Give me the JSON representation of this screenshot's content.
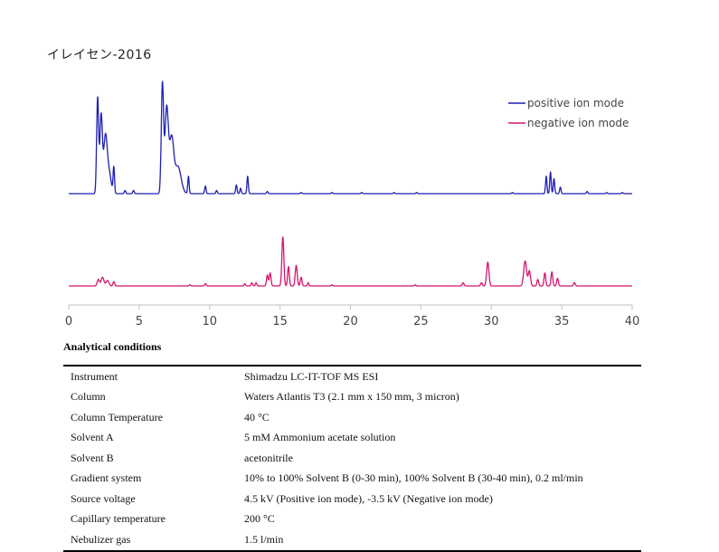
{
  "title": "イレイセン-2016",
  "chart_data": {
    "type": "line",
    "title": "イレイセン-2016",
    "xlabel": "",
    "ylabel": "",
    "xlim": [
      0,
      40
    ],
    "x_ticks": [
      0,
      5,
      10,
      15,
      20,
      25,
      30,
      35,
      40
    ],
    "legend_position": "top-right",
    "colors": {
      "positive": "#1f1fb4",
      "negative": "#d4166e"
    },
    "series": [
      {
        "name": "positive ion mode",
        "baseline_x": [
          0,
          40
        ],
        "peaks": [
          {
            "x": 2.05,
            "h": 0.88,
            "w": 0.07
          },
          {
            "x": 2.3,
            "h": 0.72,
            "w": 0.09
          },
          {
            "x": 2.6,
            "h": 0.5,
            "w": 0.12
          },
          {
            "x": 2.85,
            "h": 0.2,
            "w": 0.15
          },
          {
            "x": 3.2,
            "h": 0.24,
            "w": 0.05
          },
          {
            "x": 4.0,
            "h": 0.03,
            "w": 0.05
          },
          {
            "x": 4.6,
            "h": 0.03,
            "w": 0.05
          },
          {
            "x": 6.65,
            "h": 1.0,
            "w": 0.08
          },
          {
            "x": 6.95,
            "h": 0.78,
            "w": 0.12
          },
          {
            "x": 7.3,
            "h": 0.5,
            "w": 0.15
          },
          {
            "x": 7.75,
            "h": 0.25,
            "w": 0.22
          },
          {
            "x": 8.5,
            "h": 0.16,
            "w": 0.05
          },
          {
            "x": 9.7,
            "h": 0.07,
            "w": 0.05
          },
          {
            "x": 10.5,
            "h": 0.03,
            "w": 0.05
          },
          {
            "x": 11.9,
            "h": 0.08,
            "w": 0.05
          },
          {
            "x": 12.2,
            "h": 0.05,
            "w": 0.05
          },
          {
            "x": 12.7,
            "h": 0.16,
            "w": 0.05
          },
          {
            "x": 14.1,
            "h": 0.02,
            "w": 0.05
          },
          {
            "x": 16.5,
            "h": 0.01,
            "w": 0.05
          },
          {
            "x": 18.7,
            "h": 0.01,
            "w": 0.05
          },
          {
            "x": 20.8,
            "h": 0.01,
            "w": 0.05
          },
          {
            "x": 23.1,
            "h": 0.01,
            "w": 0.05
          },
          {
            "x": 24.7,
            "h": 0.01,
            "w": 0.05
          },
          {
            "x": 31.5,
            "h": 0.01,
            "w": 0.05
          },
          {
            "x": 33.9,
            "h": 0.16,
            "w": 0.05
          },
          {
            "x": 34.2,
            "h": 0.2,
            "w": 0.05
          },
          {
            "x": 34.45,
            "h": 0.14,
            "w": 0.05
          },
          {
            "x": 34.9,
            "h": 0.06,
            "w": 0.05
          },
          {
            "x": 36.8,
            "h": 0.02,
            "w": 0.05
          },
          {
            "x": 38.2,
            "h": 0.01,
            "w": 0.05
          },
          {
            "x": 39.3,
            "h": 0.01,
            "w": 0.05
          }
        ]
      },
      {
        "name": "negative ion mode",
        "baseline_x": [
          0,
          40
        ],
        "peaks": [
          {
            "x": 2.1,
            "h": 0.06,
            "w": 0.08
          },
          {
            "x": 2.4,
            "h": 0.08,
            "w": 0.1
          },
          {
            "x": 2.75,
            "h": 0.05,
            "w": 0.1
          },
          {
            "x": 3.2,
            "h": 0.04,
            "w": 0.06
          },
          {
            "x": 8.6,
            "h": 0.01,
            "w": 0.06
          },
          {
            "x": 9.7,
            "h": 0.02,
            "w": 0.06
          },
          {
            "x": 12.5,
            "h": 0.02,
            "w": 0.05
          },
          {
            "x": 13.0,
            "h": 0.03,
            "w": 0.05
          },
          {
            "x": 13.3,
            "h": 0.03,
            "w": 0.05
          },
          {
            "x": 14.1,
            "h": 0.1,
            "w": 0.06
          },
          {
            "x": 14.3,
            "h": 0.12,
            "w": 0.06
          },
          {
            "x": 15.2,
            "h": 0.45,
            "w": 0.07
          },
          {
            "x": 15.6,
            "h": 0.18,
            "w": 0.06
          },
          {
            "x": 16.15,
            "h": 0.19,
            "w": 0.07
          },
          {
            "x": 16.5,
            "h": 0.08,
            "w": 0.06
          },
          {
            "x": 17.0,
            "h": 0.03,
            "w": 0.05
          },
          {
            "x": 18.7,
            "h": 0.01,
            "w": 0.05
          },
          {
            "x": 24.6,
            "h": 0.01,
            "w": 0.05
          },
          {
            "x": 28.0,
            "h": 0.03,
            "w": 0.06
          },
          {
            "x": 29.3,
            "h": 0.03,
            "w": 0.06
          },
          {
            "x": 29.75,
            "h": 0.22,
            "w": 0.08
          },
          {
            "x": 32.4,
            "h": 0.23,
            "w": 0.1
          },
          {
            "x": 32.7,
            "h": 0.14,
            "w": 0.08
          },
          {
            "x": 33.3,
            "h": 0.06,
            "w": 0.06
          },
          {
            "x": 33.8,
            "h": 0.12,
            "w": 0.06
          },
          {
            "x": 34.3,
            "h": 0.13,
            "w": 0.06
          },
          {
            "x": 34.7,
            "h": 0.07,
            "w": 0.06
          },
          {
            "x": 35.9,
            "h": 0.03,
            "w": 0.06
          }
        ]
      }
    ]
  },
  "conditions": {
    "title": "Analytical conditions",
    "rows": [
      {
        "label": "Instrument",
        "value": "Shimadzu LC-IT-TOF MS ESI"
      },
      {
        "label": "Column",
        "value": "Waters Atlantis T3 (2.1 mm x 150 mm, 3 micron)"
      },
      {
        "label": "Column Temperature",
        "value": "40 °C"
      },
      {
        "label": "Solvent A",
        "value": "5 mM Ammonium acetate solution"
      },
      {
        "label": "Solvent B",
        "value": "acetonitrile"
      },
      {
        "label": "Gradient system",
        "value": "10% to 100% Solvent B (0-30 min), 100% Solvent B (30-40 min), 0.2 ml/min"
      },
      {
        "label": "Source voltage",
        "value": "4.5 kV (Positive ion mode), -3.5 kV (Negative ion mode)"
      },
      {
        "label": "Capillary temperature",
        "value": "200 °C"
      },
      {
        "label": "Nebulizer gas",
        "value": "1.5 l/min"
      }
    ]
  }
}
